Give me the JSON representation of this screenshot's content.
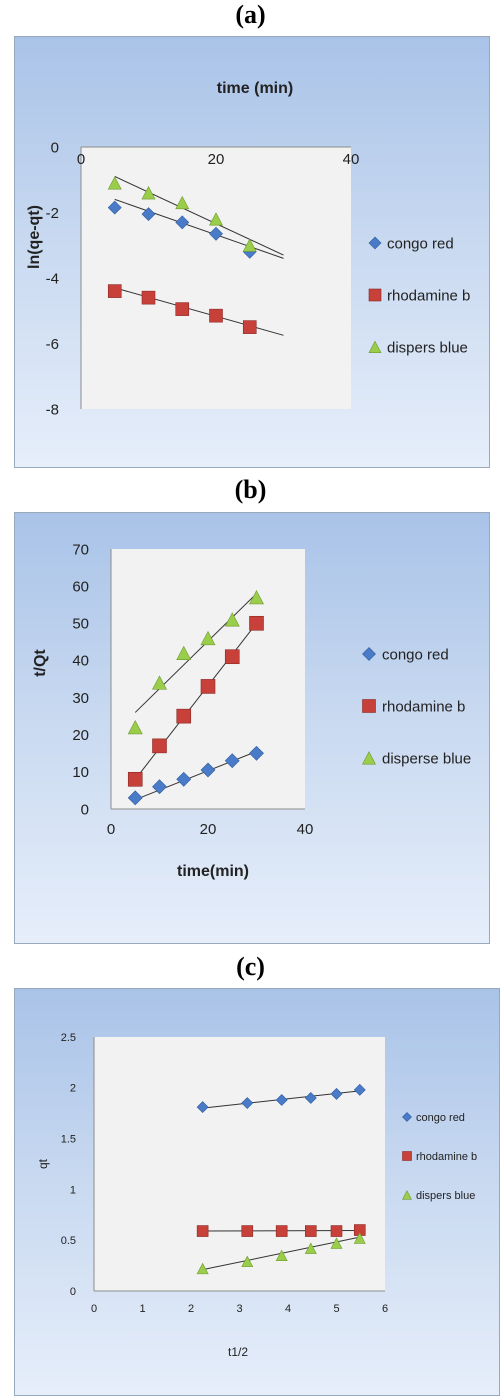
{
  "panels": [
    {
      "label": "(a)"
    },
    {
      "label": "(b)"
    },
    {
      "label": "(c)"
    }
  ],
  "chart_data": [
    {
      "type": "scatter",
      "title": "time (min)",
      "xlabel": "",
      "ylabel": "ln(qe-qt)",
      "xlim": [
        0,
        40
      ],
      "ylim": [
        -8,
        0
      ],
      "xticks": [
        0,
        20,
        40
      ],
      "yticks": [
        0,
        -2,
        -4,
        -6,
        -8
      ],
      "legend_position": "right",
      "series": [
        {
          "name": "congo red",
          "marker": "diamond",
          "color": "#4a7bc8",
          "x": [
            5,
            10,
            15,
            20,
            25
          ],
          "y": [
            -1.85,
            -2.05,
            -2.3,
            -2.65,
            -3.2
          ],
          "fit": [
            [
              5,
              -1.6
            ],
            [
              30,
              -3.4
            ]
          ]
        },
        {
          "name": "rhodamine b",
          "marker": "square",
          "color": "#c8403a",
          "x": [
            5,
            10,
            15,
            20,
            25
          ],
          "y": [
            -4.4,
            -4.6,
            -4.95,
            -5.15,
            -5.5
          ],
          "fit": [
            [
              5,
              -4.3
            ],
            [
              30,
              -5.75
            ]
          ]
        },
        {
          "name": "dispers blue",
          "marker": "triangle",
          "color": "#9acd4a",
          "x": [
            5,
            10,
            15,
            20,
            25
          ],
          "y": [
            -1.1,
            -1.4,
            -1.7,
            -2.2,
            -3.0
          ],
          "fit": [
            [
              5,
              -0.9
            ],
            [
              30,
              -3.3
            ]
          ]
        }
      ]
    },
    {
      "type": "scatter",
      "title": "",
      "xlabel": "time(min)",
      "ylabel": "t/Qt",
      "xlim": [
        0,
        40
      ],
      "ylim": [
        0,
        70
      ],
      "xticks": [
        0,
        20,
        40
      ],
      "yticks": [
        0,
        10,
        20,
        30,
        40,
        50,
        60,
        70
      ],
      "legend_position": "right",
      "series": [
        {
          "name": "congo red",
          "marker": "diamond",
          "color": "#4a7bc8",
          "x": [
            5,
            10,
            15,
            20,
            25,
            30
          ],
          "y": [
            3,
            6,
            8,
            10.5,
            13,
            15
          ],
          "fit": [
            [
              5,
              2.5
            ],
            [
              30,
              15.5
            ]
          ]
        },
        {
          "name": "rhodamine b",
          "marker": "square",
          "color": "#c8403a",
          "x": [
            5,
            10,
            15,
            20,
            25,
            30
          ],
          "y": [
            8,
            17,
            25,
            33,
            41,
            50
          ],
          "fit": [
            [
              5,
              8
            ],
            [
              30,
              50
            ]
          ]
        },
        {
          "name": "disperse blue",
          "marker": "triangle",
          "color": "#9acd4a",
          "x": [
            5,
            10,
            15,
            20,
            25,
            30
          ],
          "y": [
            22,
            34,
            42,
            46,
            51,
            57
          ],
          "fit": [
            [
              5,
              26
            ],
            [
              30,
              58
            ]
          ]
        }
      ]
    },
    {
      "type": "scatter",
      "title": "",
      "xlabel": "t1/2",
      "ylabel": "qt",
      "xlim": [
        0,
        6
      ],
      "ylim": [
        0,
        2.5
      ],
      "xticks": [
        0,
        1,
        2,
        3,
        4,
        5,
        6
      ],
      "yticks": [
        0,
        0.5,
        1,
        1.5,
        2,
        2.5
      ],
      "legend_position": "right",
      "series": [
        {
          "name": "congo red",
          "marker": "diamond",
          "color": "#4a7bc8",
          "x": [
            2.24,
            3.16,
            3.87,
            4.47,
            5.0,
            5.48
          ],
          "y": [
            1.81,
            1.85,
            1.88,
            1.9,
            1.94,
            1.98
          ],
          "fit": [
            [
              2.24,
              1.8
            ],
            [
              5.48,
              1.97
            ]
          ]
        },
        {
          "name": "rhodamine b",
          "marker": "square",
          "color": "#c8403a",
          "x": [
            2.24,
            3.16,
            3.87,
            4.47,
            5.0,
            5.48
          ],
          "y": [
            0.59,
            0.59,
            0.59,
            0.59,
            0.59,
            0.6
          ],
          "fit": [
            [
              2.24,
              0.59
            ],
            [
              5.48,
              0.595
            ]
          ]
        },
        {
          "name": "dispers blue",
          "marker": "triangle",
          "color": "#9acd4a",
          "x": [
            2.24,
            3.16,
            3.87,
            4.47,
            5.0,
            5.48
          ],
          "y": [
            0.22,
            0.29,
            0.35,
            0.42,
            0.47,
            0.52
          ],
          "fit": [
            [
              2.24,
              0.21
            ],
            [
              5.48,
              0.53
            ]
          ]
        }
      ]
    }
  ]
}
